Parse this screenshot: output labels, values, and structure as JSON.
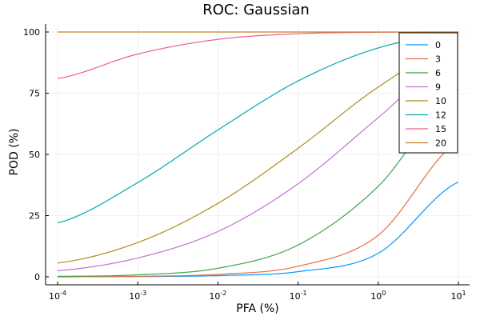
{
  "chart_data": {
    "type": "line",
    "title": "ROC: Gaussian",
    "xlabel": "PFA (%)",
    "ylabel": "POD (%)",
    "x_scale": "log",
    "xlim": [
      0.0001,
      10
    ],
    "ylim": [
      0,
      100
    ],
    "x_ticks": [
      {
        "base": "10",
        "exp": "-4"
      },
      {
        "base": "10",
        "exp": "-3"
      },
      {
        "base": "10",
        "exp": "-2"
      },
      {
        "base": "10",
        "exp": "-1"
      },
      {
        "base": "10",
        "exp": "0"
      },
      {
        "base": "10",
        "exp": "1"
      }
    ],
    "y_ticks": [
      "0",
      "25",
      "50",
      "75",
      "100"
    ],
    "grid": true,
    "legend_position": "top-right",
    "series": [
      {
        "name": "0",
        "color": "#009AFA",
        "x": [
          0.0001,
          0.001,
          0.01,
          0.1,
          1,
          10
        ],
        "y": [
          0.0,
          0.1,
          0.5,
          2.1,
          9.6,
          38.7
        ]
      },
      {
        "name": "3",
        "color": "#E36F47",
        "x": [
          0.0001,
          0.001,
          0.01,
          0.1,
          1,
          10
        ],
        "y": [
          0.0,
          0.2,
          1.0,
          4.3,
          17.0,
          55.5
        ]
      },
      {
        "name": "6",
        "color": "#3EA44E",
        "x": [
          0.0001,
          0.001,
          0.01,
          0.1,
          1,
          10
        ],
        "y": [
          0.2,
          0.8,
          3.5,
          13.0,
          37.0,
          76.5
        ]
      },
      {
        "name": "9",
        "color": "#C371D2",
        "x": [
          0.0001,
          0.001,
          0.01,
          0.1,
          1,
          10
        ],
        "y": [
          2.5,
          7.7,
          18.5,
          38.0,
          65.0,
          92.0
        ]
      },
      {
        "name": "10",
        "color": "#AC8D18",
        "x": [
          0.0001,
          0.001,
          0.01,
          0.1,
          1,
          10
        ],
        "y": [
          5.6,
          14.0,
          30.0,
          52.5,
          77.5,
          96.0
        ]
      },
      {
        "name": "12",
        "color": "#00A9AD",
        "x": [
          0.0001,
          0.001,
          0.01,
          0.1,
          1,
          10
        ],
        "y": [
          22.0,
          38.5,
          60.0,
          80.0,
          93.5,
          99.5
        ]
      },
      {
        "name": "15",
        "color": "#ED5D92",
        "x": [
          0.0001,
          0.001,
          0.01,
          0.1,
          1,
          10
        ],
        "y": [
          81.0,
          91.0,
          97.0,
          99.3,
          99.9,
          100.0
        ]
      },
      {
        "name": "20",
        "color": "#C68125",
        "x": [
          0.0001,
          0.001,
          0.01,
          0.1,
          1,
          10
        ],
        "y": [
          100.0,
          100.0,
          100.0,
          100.0,
          100.0,
          100.0
        ]
      }
    ]
  }
}
